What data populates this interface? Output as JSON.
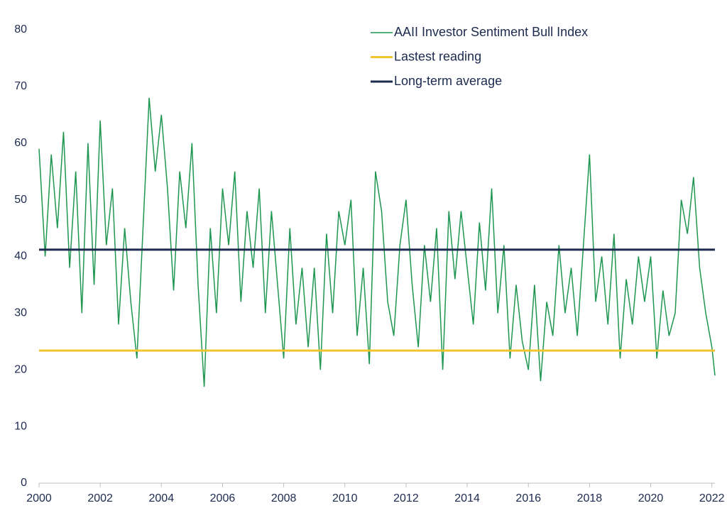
{
  "chart_data": {
    "type": "line",
    "series": [
      {
        "name": "AAII Investor Sentiment Bull Index",
        "color": "#1f9650",
        "x": [
          2000.0,
          2000.2,
          2000.4,
          2000.6,
          2000.8,
          2001.0,
          2001.2,
          2001.4,
          2001.6,
          2001.8,
          2002.0,
          2002.2,
          2002.4,
          2002.6,
          2002.8,
          2003.0,
          2003.2,
          2003.4,
          2003.6,
          2003.8,
          2004.0,
          2004.2,
          2004.4,
          2004.6,
          2004.8,
          2005.0,
          2005.2,
          2005.4,
          2005.6,
          2005.8,
          2006.0,
          2006.2,
          2006.4,
          2006.6,
          2006.8,
          2007.0,
          2007.2,
          2007.4,
          2007.6,
          2007.8,
          2008.0,
          2008.2,
          2008.4,
          2008.6,
          2008.8,
          2009.0,
          2009.2,
          2009.4,
          2009.6,
          2009.8,
          2010.0,
          2010.2,
          2010.4,
          2010.6,
          2010.8,
          2011.0,
          2011.2,
          2011.4,
          2011.6,
          2011.8,
          2012.0,
          2012.2,
          2012.4,
          2012.6,
          2012.8,
          2013.0,
          2013.2,
          2013.4,
          2013.6,
          2013.8,
          2014.0,
          2014.2,
          2014.4,
          2014.6,
          2014.8,
          2015.0,
          2015.2,
          2015.4,
          2015.6,
          2015.8,
          2016.0,
          2016.2,
          2016.4,
          2016.6,
          2016.8,
          2017.0,
          2017.2,
          2017.4,
          2017.6,
          2017.8,
          2018.0,
          2018.2,
          2018.4,
          2018.6,
          2018.8,
          2019.0,
          2019.2,
          2019.4,
          2019.6,
          2019.8,
          2020.0,
          2020.2,
          2020.4,
          2020.6,
          2020.8,
          2021.0,
          2021.2,
          2021.4,
          2021.6,
          2021.8,
          2022.0,
          2022.1
        ],
        "values": [
          59,
          40,
          58,
          45,
          62,
          38,
          55,
          30,
          60,
          35,
          64,
          42,
          52,
          28,
          45,
          32,
          22,
          45,
          68,
          55,
          65,
          52,
          34,
          55,
          45,
          60,
          35,
          17,
          45,
          30,
          52,
          42,
          55,
          32,
          48,
          38,
          52,
          30,
          48,
          35,
          22,
          45,
          28,
          38,
          24,
          38,
          20,
          44,
          30,
          48,
          42,
          50,
          26,
          38,
          21,
          55,
          48,
          32,
          26,
          42,
          50,
          35,
          24,
          42,
          32,
          45,
          20,
          48,
          36,
          48,
          38,
          28,
          46,
          34,
          52,
          30,
          42,
          22,
          35,
          25,
          20,
          35,
          18,
          32,
          26,
          42,
          30,
          38,
          26,
          42,
          58,
          32,
          40,
          28,
          44,
          22,
          36,
          28,
          40,
          32,
          40,
          22,
          34,
          26,
          30,
          50,
          44,
          54,
          38,
          30,
          24,
          19
        ]
      },
      {
        "name": "Lastest reading",
        "color": "#f2c530",
        "x": [
          2000,
          2022.1
        ],
        "values": [
          23.4,
          23.4
        ]
      },
      {
        "name": "Long-term average",
        "color": "#1c2a4e",
        "x": [
          2000,
          2022.1
        ],
        "values": [
          41.2,
          41.2
        ]
      }
    ],
    "xlim": [
      2000,
      2022.1
    ],
    "xticks": [
      2000,
      2002,
      2004,
      2006,
      2008,
      2010,
      2012,
      2014,
      2016,
      2018,
      2020,
      2022
    ],
    "ylim": [
      0,
      80
    ],
    "yticks": [
      0,
      10,
      20,
      30,
      40,
      50,
      60,
      70,
      80
    ],
    "grid": false
  }
}
